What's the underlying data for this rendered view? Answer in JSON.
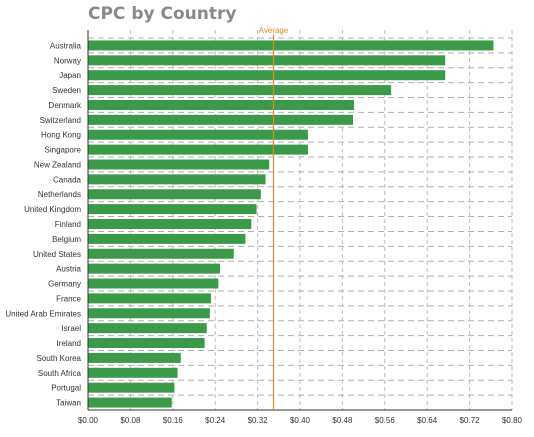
{
  "chart_data": {
    "type": "bar",
    "orientation": "horizontal",
    "title": "CPC by Country",
    "xlabel": "",
    "ylabel": "",
    "xlim": [
      0,
      0.8
    ],
    "x_ticks": [
      "$0.00",
      "$0.08",
      "$0.16",
      "$0.24",
      "$0.32",
      "$0.40",
      "$0.48",
      "$0.56",
      "$0.64",
      "$0.72",
      "$0.80"
    ],
    "categories": [
      "Australia",
      "Norway",
      "Japan",
      "Sweden",
      "Denmark",
      "Switzerland",
      "Hong Kong",
      "Singapore",
      "New Zealand",
      "Canada",
      "Netherlands",
      "United Kingdom",
      "Finland",
      "Belgium",
      "United States",
      "Austria",
      "Germany",
      "France",
      "United Arab Emirates",
      "Israel",
      "Ireland",
      "South Korea",
      "South Africa",
      "Portugal",
      "Taiwan"
    ],
    "values": [
      0.765,
      0.674,
      0.674,
      0.572,
      0.502,
      0.5,
      0.415,
      0.415,
      0.342,
      0.335,
      0.326,
      0.318,
      0.308,
      0.297,
      0.275,
      0.249,
      0.246,
      0.232,
      0.23,
      0.224,
      0.22,
      0.175,
      0.169,
      0.163,
      0.158
    ],
    "average": {
      "label": "Average",
      "value": 0.35
    },
    "grid": true,
    "colors": {
      "bar": "#3a9a48",
      "average_line": "#e8871e",
      "title": "#8a8a8a"
    }
  }
}
